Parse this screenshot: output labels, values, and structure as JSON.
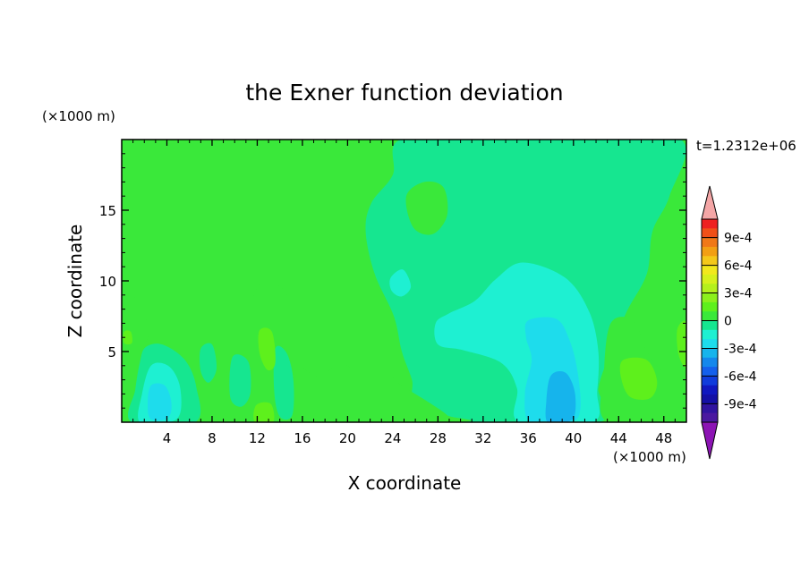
{
  "chart_data": {
    "type": "heatmap",
    "title": "the Exner function deviation",
    "time_label": "t=1.2312e+06",
    "xlabel": "X coordinate",
    "ylabel": "Z coordinate",
    "x_unit": "(×1000 m)",
    "y_unit": "(×1000 m)",
    "xlim": [
      0,
      50
    ],
    "ylim": [
      0,
      20
    ],
    "x_ticks": [
      4,
      8,
      12,
      16,
      20,
      24,
      28,
      32,
      36,
      40,
      44,
      48
    ],
    "y_ticks": [
      5,
      10,
      15
    ],
    "colorbar": {
      "tick_labels": [
        "9e-4",
        "6e-4",
        "3e-4",
        "0",
        "-3e-4",
        "-6e-4",
        "-9e-4"
      ],
      "tick_values": [
        0.0009,
        0.0006,
        0.0003,
        0,
        -0.0003,
        -0.0006,
        -0.0009
      ],
      "levels_top_to_bottom": [
        0.0011,
        0.001,
        0.0009,
        0.0008,
        0.0007,
        0.0006,
        0.0005,
        0.0004,
        0.0003,
        0.0002,
        0.0001,
        0,
        -0.0001,
        -0.0002,
        -0.0003,
        -0.0004,
        -0.0005,
        -0.0006,
        -0.0007,
        -0.0008,
        -0.0009,
        -0.001,
        -0.0011
      ],
      "colors_top_to_bottom": [
        "#ee2020",
        "#f05018",
        "#f07818",
        "#f29f14",
        "#f4c81a",
        "#f2e81c",
        "#d6f01c",
        "#b4f01c",
        "#8cf01c",
        "#5ef01c",
        "#3ae83a",
        "#16e690",
        "#1ef0d2",
        "#1edcec",
        "#16b4ec",
        "#1488ec",
        "#1460ec",
        "#103cdc",
        "#1018c0",
        "#1410a6",
        "#3014a0",
        "#4a18a0"
      ],
      "over_color": "#f4a6a6",
      "under_color": "#8c14b4"
    },
    "background_level": 5e-05,
    "regions": [
      {
        "level": 0,
        "points": [
          [
            24.7,
            20
          ],
          [
            32.3,
            20
          ],
          [
            40.5,
            20
          ],
          [
            49.5,
            20
          ],
          [
            48.5,
            16
          ],
          [
            47,
            13.5
          ],
          [
            46.5,
            10.5
          ],
          [
            44.7,
            7.8
          ],
          [
            43.2,
            4.8
          ],
          [
            42.2,
            2.4
          ],
          [
            42.2,
            0
          ],
          [
            29.3,
            0
          ],
          [
            26,
            1.5
          ],
          [
            25.7,
            3
          ],
          [
            24.8,
            5
          ],
          [
            24.1,
            7.5
          ],
          [
            22.4,
            10.5
          ],
          [
            21.6,
            13.5
          ],
          [
            22.1,
            15.5
          ],
          [
            24,
            17.5
          ]
        ]
      },
      {
        "level": 5e-05,
        "points": [
          [
            25.2,
            16
          ],
          [
            26.8,
            17
          ],
          [
            28.5,
            16.6
          ],
          [
            28.8,
            14.6
          ],
          [
            27.5,
            13.3
          ],
          [
            25.8,
            13.8
          ]
        ]
      },
      {
        "level": -0.0001,
        "points": [
          [
            35.5,
            11.3
          ],
          [
            39.3,
            10.2
          ],
          [
            41.4,
            7.8
          ],
          [
            42.2,
            5
          ],
          [
            42.1,
            2.2
          ],
          [
            41.7,
            0
          ],
          [
            35.2,
            0
          ],
          [
            35,
            2.4
          ],
          [
            33.6,
            4.2
          ],
          [
            30.2,
            5.1
          ],
          [
            28,
            5.5
          ],
          [
            27.8,
            7
          ],
          [
            29,
            7.7
          ],
          [
            31.3,
            8.6
          ],
          [
            33.1,
            10.1
          ]
        ]
      },
      {
        "level": -0.0001,
        "points": [
          [
            23.8,
            10.2
          ],
          [
            24.9,
            10.8
          ],
          [
            25.6,
            9.6
          ],
          [
            24.8,
            8.9
          ],
          [
            23.9,
            9.3
          ]
        ]
      },
      {
        "level": -0.0002,
        "points": [
          [
            36,
            7.2
          ],
          [
            38.5,
            7.3
          ],
          [
            39.7,
            5.7
          ],
          [
            40.4,
            3.4
          ],
          [
            40.6,
            0.9
          ],
          [
            39.7,
            0
          ],
          [
            36.2,
            0
          ],
          [
            35.7,
            2
          ],
          [
            36.3,
            4.4
          ],
          [
            35.8,
            6
          ]
        ]
      },
      {
        "level": -0.0003,
        "points": [
          [
            38,
            3.3
          ],
          [
            39.3,
            3.5
          ],
          [
            40.1,
            2.2
          ],
          [
            40.1,
            0.5
          ],
          [
            39.3,
            0
          ],
          [
            37.7,
            0
          ],
          [
            37.6,
            1.5
          ]
        ]
      },
      {
        "level": 0.0001,
        "points": [
          [
            0,
            8.6
          ],
          [
            1.5,
            8.5
          ],
          [
            2.4,
            6.5
          ],
          [
            2.2,
            5
          ],
          [
            5.5,
            4.6
          ],
          [
            7.5,
            4.1
          ],
          [
            10.5,
            3.6
          ],
          [
            11.2,
            7.5
          ],
          [
            12.3,
            9.8
          ],
          [
            14.3,
            9.4
          ],
          [
            15.1,
            7.5
          ],
          [
            15.4,
            4.6
          ],
          [
            17.5,
            3.2
          ],
          [
            19.3,
            4.2
          ],
          [
            21.4,
            3.3
          ],
          [
            23.5,
            3.5
          ],
          [
            24.6,
            2.7
          ],
          [
            27,
            1.5
          ],
          [
            28.8,
            0.5
          ],
          [
            28.8,
            0
          ],
          [
            0,
            0
          ]
        ]
      },
      {
        "level": 0.0001,
        "points": [
          [
            43.3,
            7
          ],
          [
            45.3,
            7.2
          ],
          [
            46.5,
            5
          ],
          [
            48,
            3.6
          ],
          [
            48.9,
            4.5
          ],
          [
            49.3,
            7.8
          ],
          [
            49.5,
            8.2
          ],
          [
            50,
            8
          ],
          [
            50,
            0
          ],
          [
            43,
            0
          ],
          [
            42.7,
            3.4
          ]
        ]
      },
      {
        "level": 0,
        "points": [
          [
            2.1,
            5.3
          ],
          [
            3.6,
            5.5
          ],
          [
            5.6,
            4.4
          ],
          [
            6.6,
            2.5
          ],
          [
            6.5,
            0
          ],
          [
            0.9,
            0
          ],
          [
            1.2,
            2.3
          ],
          [
            1.6,
            4.2
          ]
        ]
      },
      {
        "level": -0.0001,
        "points": [
          [
            2.6,
            4
          ],
          [
            4.1,
            4
          ],
          [
            5.1,
            2.7
          ],
          [
            5.2,
            0.7
          ],
          [
            4.2,
            0
          ],
          [
            1.6,
            0
          ],
          [
            1.8,
            2
          ]
        ]
      },
      {
        "level": -0.0002,
        "points": [
          [
            2.6,
            2.6
          ],
          [
            3.8,
            2.6
          ],
          [
            4.4,
            1.4
          ],
          [
            4.1,
            0.3
          ],
          [
            2.6,
            0.2
          ],
          [
            2.3,
            1.3
          ]
        ]
      },
      {
        "level": 0,
        "points": [
          [
            7,
            5.2
          ],
          [
            8,
            5.5
          ],
          [
            8.4,
            3.8
          ],
          [
            7.7,
            2.8
          ],
          [
            7,
            3.6
          ]
        ]
      },
      {
        "level": 0,
        "points": [
          [
            13.6,
            5.2
          ],
          [
            14.6,
            4.9
          ],
          [
            15.2,
            3
          ],
          [
            15.1,
            0.5
          ],
          [
            14,
            0.4
          ],
          [
            13.5,
            2.2
          ]
        ]
      },
      {
        "level": 0,
        "points": [
          [
            9.8,
            4.6
          ],
          [
            11.2,
            4.3
          ],
          [
            11.4,
            2.1
          ],
          [
            10.6,
            1.1
          ],
          [
            9.6,
            1.8
          ]
        ]
      },
      {
        "level": 0.0002,
        "points": [
          [
            12.2,
            6.5
          ],
          [
            13.3,
            6.4
          ],
          [
            13.6,
            4.2
          ],
          [
            12.9,
            3.7
          ],
          [
            12.2,
            4.9
          ]
        ]
      },
      {
        "level": 0.0002,
        "points": [
          [
            11.9,
            1.2
          ],
          [
            13.2,
            1.3
          ],
          [
            13.4,
            0
          ],
          [
            11.8,
            0
          ]
        ]
      },
      {
        "level": 0.0002,
        "points": [
          [
            44.4,
            4.4
          ],
          [
            46.5,
            4.4
          ],
          [
            47.4,
            2.9
          ],
          [
            46.8,
            1.7
          ],
          [
            45,
            1.8
          ],
          [
            44.2,
            3.2
          ]
        ]
      },
      {
        "level": 0.0002,
        "points": [
          [
            49.2,
            6.6
          ],
          [
            50,
            7
          ],
          [
            50,
            4
          ],
          [
            49.3,
            4.8
          ]
        ]
      },
      {
        "level": 0.0002,
        "points": [
          [
            0.2,
            6.4
          ],
          [
            0.8,
            6.4
          ],
          [
            0.9,
            5.6
          ],
          [
            0.2,
            5.6
          ]
        ]
      }
    ]
  }
}
